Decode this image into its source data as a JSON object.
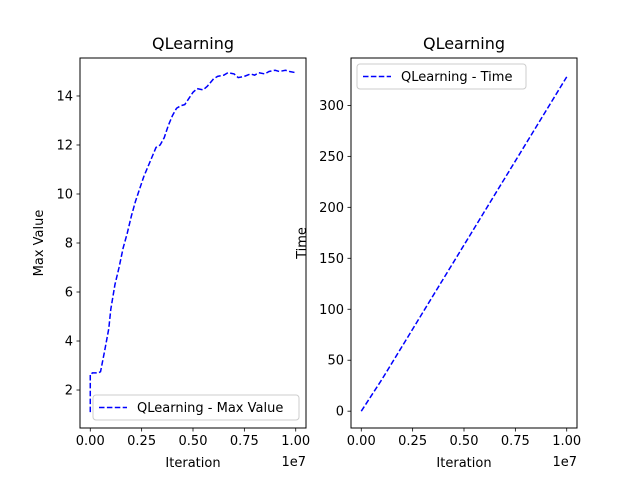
{
  "chart_data": [
    {
      "type": "line",
      "title": "QLearning",
      "xlabel": "Iteration",
      "ylabel": "Max Value",
      "x_offset_label": "1e7",
      "xlim": [
        -0.05,
        1.05
      ],
      "ylim": [
        0.45,
        15.55
      ],
      "xticks": [
        0.0,
        0.25,
        0.5,
        0.75,
        1.0
      ],
      "xtick_labels": [
        "0.00",
        "0.25",
        "0.50",
        "0.75",
        "1.00"
      ],
      "yticks": [
        2,
        4,
        6,
        8,
        10,
        12,
        14
      ],
      "ytick_labels": [
        "2",
        "4",
        "6",
        "8",
        "10",
        "12",
        "14"
      ],
      "legend_position": "lower-right",
      "grid": false,
      "series": [
        {
          "name": "QLearning - Max Value",
          "color": "#0000ff",
          "linestyle": "dashed",
          "x": [
            0.0,
            0.0,
            0.005,
            0.01,
            0.04,
            0.05,
            0.07,
            0.09,
            0.1,
            0.12,
            0.14,
            0.16,
            0.18,
            0.2,
            0.22,
            0.24,
            0.26,
            0.28,
            0.3,
            0.32,
            0.34,
            0.36,
            0.38,
            0.4,
            0.42,
            0.44,
            0.46,
            0.48,
            0.5,
            0.52,
            0.55,
            0.57,
            0.6,
            0.62,
            0.65,
            0.67,
            0.7,
            0.72,
            0.75,
            0.78,
            0.8,
            0.82,
            0.85,
            0.87,
            0.9,
            0.92,
            0.95,
            0.97,
            1.0
          ],
          "y": [
            1.1,
            2.65,
            2.65,
            2.7,
            2.7,
            2.75,
            3.6,
            4.5,
            5.3,
            6.3,
            7.0,
            7.8,
            8.4,
            9.1,
            9.7,
            10.2,
            10.7,
            11.1,
            11.5,
            11.9,
            12.0,
            12.3,
            12.8,
            13.2,
            13.5,
            13.6,
            13.65,
            13.9,
            14.15,
            14.3,
            14.25,
            14.4,
            14.7,
            14.8,
            14.85,
            14.95,
            14.9,
            14.75,
            14.8,
            14.9,
            14.85,
            14.95,
            14.9,
            15.0,
            15.05,
            15.0,
            15.05,
            15.0,
            14.95
          ]
        }
      ]
    },
    {
      "type": "line",
      "title": "QLearning",
      "xlabel": "Iteration",
      "ylabel": "Time",
      "x_offset_label": "1e7",
      "xlim": [
        -0.05,
        1.05
      ],
      "ylim": [
        -16.5,
        346.5
      ],
      "xticks": [
        0.0,
        0.25,
        0.5,
        0.75,
        1.0
      ],
      "xtick_labels": [
        "0.00",
        "0.25",
        "0.50",
        "0.75",
        "1.00"
      ],
      "yticks": [
        0,
        50,
        100,
        150,
        200,
        250,
        300
      ],
      "ytick_labels": [
        "0",
        "50",
        "100",
        "150",
        "200",
        "250",
        "300"
      ],
      "legend_position": "top-left",
      "grid": false,
      "series": [
        {
          "name": "QLearning - Time",
          "color": "#0000ff",
          "linestyle": "dashed",
          "x": [
            0.0,
            0.1,
            0.2,
            0.3,
            0.4,
            0.5,
            0.6,
            0.7,
            0.8,
            0.9,
            1.0
          ],
          "y": [
            0,
            31,
            64,
            97,
            130,
            163,
            196,
            229,
            262,
            295,
            328
          ]
        }
      ]
    }
  ]
}
